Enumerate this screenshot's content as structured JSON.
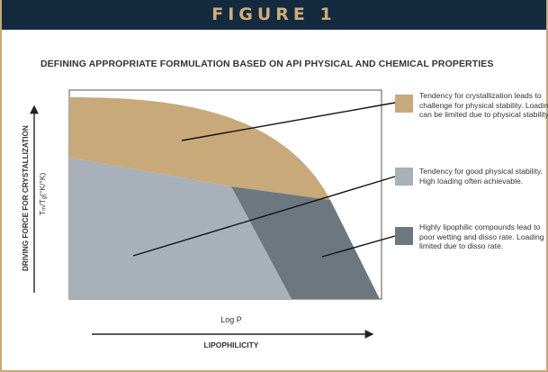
{
  "header": {
    "title": "FIGURE 1"
  },
  "subtitle": "DEFINING APPROPRIATE FORMULATION BASED ON API PHYSICAL AND CHEMICAL PROPERTIES",
  "axes": {
    "y_label": "DRIVING FORCE FOR CRYSTALLIZATION",
    "y_formula": "Tm/Tg(°K/°K)",
    "x_label": "Log P",
    "x_caption": "LIPOPHILICITY"
  },
  "regions": [
    {
      "name": "tan",
      "color": "#c8a97a"
    },
    {
      "name": "gray",
      "color": "#a8b0b9"
    },
    {
      "name": "dark",
      "color": "#6d7780"
    }
  ],
  "legend": [
    {
      "color": "#c8a97a",
      "text": "Tendency for crystallization leads to challenge for physical stability. Loading can be limited due to physical stability."
    },
    {
      "color": "#a8b0b9",
      "text": "Tendency for good physical stability. High loading often achievable."
    },
    {
      "color": "#6d7780",
      "text": "Highly lipophilic compounds lead to poor wetting and disso rate. Loading limited due to disso rate."
    }
  ]
}
